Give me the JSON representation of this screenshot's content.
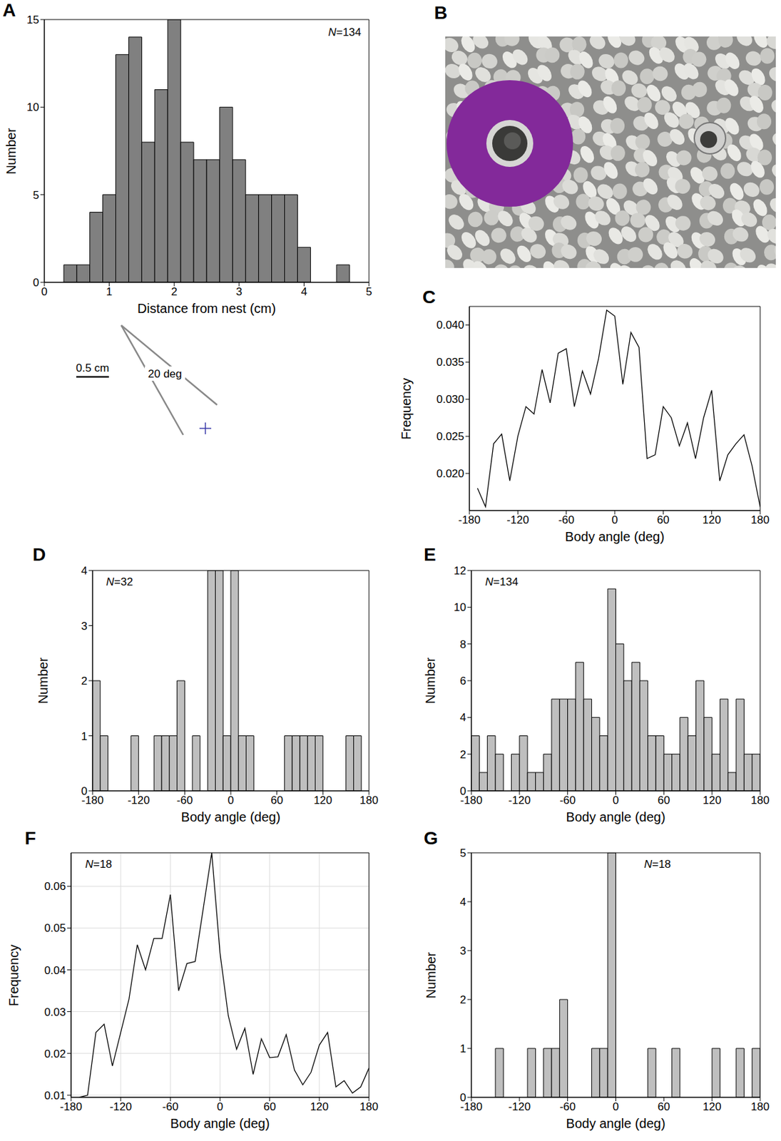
{
  "chart_data": [
    {
      "label": "A",
      "type": "histogram",
      "annotation": "N=134",
      "x_label": "Distance from nest (cm)",
      "y_label": "Number",
      "bins": [
        0.3,
        0.5,
        0.7,
        0.9,
        1.1,
        1.3,
        1.5,
        1.7,
        1.9,
        2.1,
        2.3,
        2.5,
        2.7,
        2.9,
        3.1,
        3.3,
        3.5,
        3.7,
        3.9,
        4.1,
        4.3,
        4.5,
        4.7
      ],
      "counts": [
        1,
        1,
        4,
        5,
        13,
        14,
        8,
        11,
        15,
        8,
        7,
        7,
        10,
        7,
        5,
        5,
        5,
        5,
        2,
        0,
        0,
        1
      ],
      "color": "#808080",
      "grid": false,
      "xlim": [
        0,
        5
      ],
      "xticks": [
        0,
        1,
        2,
        3,
        4,
        5
      ],
      "ylim": [
        0,
        15
      ],
      "yticks": [
        0,
        5,
        10,
        15
      ]
    },
    {
      "label": "C",
      "type": "line",
      "x_label": "Body angle (deg)",
      "y_label": "Frequency",
      "x": [
        -170,
        -160,
        -150,
        -140,
        -130,
        -120,
        -110,
        -100,
        -90,
        -80,
        -70,
        -60,
        -50,
        -40,
        -30,
        -20,
        -10,
        0,
        10,
        20,
        30,
        40,
        50,
        60,
        70,
        80,
        90,
        100,
        110,
        120,
        130,
        140,
        150,
        160,
        170,
        180
      ],
      "values": [
        0.018,
        0.0155,
        0.024,
        0.0253,
        0.019,
        0.025,
        0.029,
        0.028,
        0.034,
        0.0295,
        0.0362,
        0.0368,
        0.029,
        0.0338,
        0.0307,
        0.0355,
        0.042,
        0.0412,
        0.032,
        0.039,
        0.037,
        0.022,
        0.0225,
        0.029,
        0.0275,
        0.0237,
        0.0268,
        0.022,
        0.0275,
        0.0312,
        0.019,
        0.0225,
        0.024,
        0.0252,
        0.021,
        0.0155
      ],
      "color": "#000000",
      "grid": false,
      "xlim": [
        -180,
        180
      ],
      "xticks": [
        -180,
        -120,
        -60,
        0,
        60,
        120,
        180
      ],
      "ylim": [
        0.015,
        0.0425
      ],
      "yticks": [
        {
          "value": 0.02,
          "label": "0.020"
        },
        {
          "value": 0.025,
          "label": "0.025"
        },
        {
          "value": 0.03,
          "label": "0.030"
        },
        {
          "value": 0.035,
          "label": "0.035"
        },
        {
          "value": 0.04,
          "label": "0.040"
        }
      ]
    },
    {
      "label": "D",
      "type": "histogram",
      "annotation": "N=32",
      "x_label": "Body angle (deg)",
      "y_label": "Number",
      "bins": [
        -180,
        -170,
        -160,
        -150,
        -140,
        -130,
        -120,
        -110,
        -100,
        -90,
        -80,
        -70,
        -60,
        -50,
        -40,
        -30,
        -20,
        -10,
        0,
        10,
        20,
        30,
        40,
        50,
        60,
        70,
        80,
        90,
        100,
        110,
        120,
        130,
        140,
        150,
        160,
        170,
        180
      ],
      "counts": [
        2,
        1,
        0,
        0,
        0,
        1,
        0,
        0,
        1,
        1,
        1,
        2,
        0,
        1,
        0,
        4,
        4,
        1,
        4,
        1,
        1,
        0,
        0,
        0,
        0,
        1,
        1,
        1,
        1,
        1,
        0,
        0,
        0,
        1,
        1,
        0
      ],
      "color": "#bfbfbf",
      "grid": false,
      "xlim": [
        -180,
        180
      ],
      "xticks": [
        -180,
        -120,
        -60,
        0,
        60,
        120,
        180
      ],
      "ylim": [
        0,
        4
      ],
      "yticks": [
        0,
        1,
        2,
        3,
        4
      ]
    },
    {
      "label": "E",
      "type": "histogram",
      "annotation": "N=134",
      "x_label": "Body angle (deg)",
      "y_label": "Number",
      "bins": [
        -180,
        -170,
        -160,
        -150,
        -140,
        -130,
        -120,
        -110,
        -100,
        -90,
        -80,
        -70,
        -60,
        -50,
        -40,
        -30,
        -20,
        -10,
        0,
        10,
        20,
        30,
        40,
        50,
        60,
        70,
        80,
        90,
        100,
        110,
        120,
        130,
        140,
        150,
        160,
        170,
        180
      ],
      "counts": [
        3,
        1,
        3,
        2,
        0,
        2,
        3,
        1,
        1,
        2,
        5,
        5,
        5,
        7,
        5,
        4,
        3,
        11,
        8,
        6,
        7,
        6,
        3,
        3,
        2,
        2,
        4,
        3,
        6,
        4,
        2,
        5,
        1,
        5,
        2,
        2
      ],
      "color": "#bfbfbf",
      "grid": false,
      "xlim": [
        -180,
        180
      ],
      "xticks": [
        -180,
        -120,
        -60,
        0,
        60,
        120,
        180
      ],
      "ylim": [
        0,
        12
      ],
      "yticks": [
        0,
        2,
        4,
        6,
        8,
        10,
        12
      ]
    },
    {
      "label": "F",
      "type": "line",
      "annotation": "N=18",
      "x_label": "Body angle (deg)",
      "y_label": "Frequency",
      "x": [
        -170,
        -160,
        -150,
        -140,
        -130,
        -120,
        -110,
        -100,
        -90,
        -80,
        -70,
        -60,
        -50,
        -40,
        -30,
        -20,
        -10,
        0,
        10,
        20,
        30,
        40,
        50,
        60,
        70,
        80,
        90,
        100,
        110,
        120,
        130,
        140,
        150,
        160,
        170,
        180
      ],
      "values": [
        0.0095,
        0.01,
        0.025,
        0.027,
        0.017,
        0.025,
        0.033,
        0.046,
        0.04,
        0.0475,
        0.0475,
        0.058,
        0.035,
        0.0415,
        0.042,
        0.055,
        0.068,
        0.044,
        0.029,
        0.021,
        0.026,
        0.015,
        0.0235,
        0.019,
        0.0192,
        0.0245,
        0.016,
        0.0125,
        0.0155,
        0.022,
        0.025,
        0.012,
        0.0135,
        0.0105,
        0.012,
        0.0165
      ],
      "color": "#000000",
      "grid": true,
      "xlim": [
        -180,
        180
      ],
      "xticks": [
        -180,
        -120,
        -60,
        0,
        60,
        120,
        180
      ],
      "ylim": [
        0.0095,
        0.068
      ],
      "yticks": [
        0.01,
        0.02,
        0.03,
        0.04,
        0.05,
        0.06
      ]
    },
    {
      "label": "G",
      "type": "histogram",
      "annotation": "N=18",
      "x_label": "Body angle (deg)",
      "y_label": "Number",
      "bins": [
        -180,
        -170,
        -160,
        -150,
        -140,
        -130,
        -120,
        -110,
        -100,
        -90,
        -80,
        -70,
        -60,
        -50,
        -40,
        -30,
        -20,
        -10,
        0,
        10,
        20,
        30,
        40,
        50,
        60,
        70,
        80,
        90,
        100,
        110,
        120,
        130,
        140,
        150,
        160,
        170,
        180
      ],
      "counts": [
        0,
        0,
        0,
        1,
        0,
        0,
        0,
        1,
        0,
        1,
        1,
        2,
        0,
        0,
        0,
        1,
        1,
        5,
        0,
        0,
        0,
        0,
        1,
        0,
        0,
        1,
        0,
        0,
        0,
        0,
        1,
        0,
        0,
        1,
        0,
        1
      ],
      "color": "#bfbfbf",
      "grid": false,
      "xlim": [
        -180,
        180
      ],
      "xticks": [
        -180,
        -120,
        -60,
        0,
        60,
        120,
        180
      ],
      "ylim": [
        0,
        5
      ],
      "yticks": [
        0,
        1,
        2,
        3,
        4,
        5
      ]
    }
  ],
  "diagram": {
    "scale_bar": "0.5 cm",
    "angle": "20 deg"
  },
  "photo": {
    "label": "B"
  }
}
